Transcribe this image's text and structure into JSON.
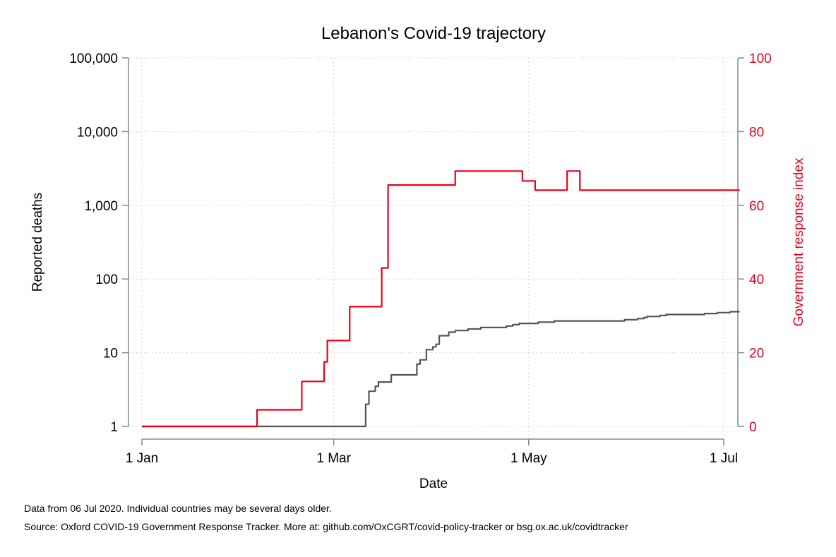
{
  "chart_data": {
    "type": "line",
    "title": "Lebanon's Covid-19 trajectory",
    "xlabel": "Date",
    "ylabel": "Reported deaths",
    "y2label": "Government response index",
    "x_ticks": [
      "1 Jan",
      "1 Mar",
      "1 May",
      "1 Jul"
    ],
    "x_tick_dates": [
      "2020-01-01",
      "2020-03-01",
      "2020-05-01",
      "2020-07-01"
    ],
    "x_range": [
      "2020-01-01",
      "2020-07-06"
    ],
    "y_scale": "log",
    "ylim": [
      1,
      100000
    ],
    "y_ticks": [
      "1",
      "10",
      "100",
      "1,000",
      "10,000",
      "100,000"
    ],
    "y_tick_values": [
      1,
      10,
      100,
      1000,
      10000,
      100000
    ],
    "y2lim": [
      0,
      100
    ],
    "y2_ticks": [
      "0",
      "20",
      "40",
      "60",
      "80",
      "100"
    ],
    "y2_tick_values": [
      0,
      20,
      40,
      60,
      80,
      100
    ],
    "grid": true,
    "series": [
      {
        "axis": "left",
        "color": "#555555",
        "step": true,
        "points": [
          [
            "2020-01-01",
            1
          ],
          [
            "2020-03-10",
            1
          ],
          [
            "2020-03-11",
            2
          ],
          [
            "2020-03-12",
            3
          ],
          [
            "2020-03-14",
            3.5
          ],
          [
            "2020-03-15",
            4
          ],
          [
            "2020-03-19",
            5
          ],
          [
            "2020-03-27",
            7
          ],
          [
            "2020-03-28",
            8
          ],
          [
            "2020-03-30",
            11
          ],
          [
            "2020-04-01",
            12
          ],
          [
            "2020-04-02",
            13
          ],
          [
            "2020-04-03",
            17
          ],
          [
            "2020-04-06",
            19
          ],
          [
            "2020-04-08",
            20
          ],
          [
            "2020-04-12",
            21
          ],
          [
            "2020-04-16",
            22
          ],
          [
            "2020-04-24",
            23
          ],
          [
            "2020-04-26",
            24
          ],
          [
            "2020-04-28",
            25
          ],
          [
            "2020-05-04",
            26
          ],
          [
            "2020-05-09",
            27
          ],
          [
            "2020-05-31",
            28
          ],
          [
            "2020-06-04",
            29
          ],
          [
            "2020-06-06",
            30
          ],
          [
            "2020-06-07",
            31
          ],
          [
            "2020-06-11",
            32
          ],
          [
            "2020-06-13",
            33
          ],
          [
            "2020-06-25",
            34
          ],
          [
            "2020-06-28",
            34
          ],
          [
            "2020-06-29",
            35
          ],
          [
            "2020-07-02",
            35
          ],
          [
            "2020-07-03",
            36
          ],
          [
            "2020-07-06",
            36
          ]
        ]
      },
      {
        "axis": "right",
        "color": "#e8001d",
        "step": true,
        "points": [
          [
            "2020-01-01",
            0
          ],
          [
            "2020-02-06",
            4.5
          ],
          [
            "2020-02-20",
            12.2
          ],
          [
            "2020-02-27",
            17.5
          ],
          [
            "2020-02-28",
            23.3
          ],
          [
            "2020-03-06",
            32.5
          ],
          [
            "2020-03-16",
            43
          ],
          [
            "2020-03-17",
            43
          ],
          [
            "2020-03-18",
            65.5
          ],
          [
            "2020-04-08",
            69.3
          ],
          [
            "2020-04-29",
            66.6
          ],
          [
            "2020-05-03",
            64.1
          ],
          [
            "2020-05-13",
            69.3
          ],
          [
            "2020-05-17",
            64.1
          ],
          [
            "2020-07-06",
            64.1
          ]
        ]
      }
    ]
  },
  "notes": {
    "line1": "Data from 06 Jul 2020. Individual countries may be several days older.",
    "line2": "Source: Oxford COVID-19 Government Response Tracker. More at: github.com/OxCGRT/covid-policy-tracker or bsg.ox.ac.uk/covidtracker"
  }
}
